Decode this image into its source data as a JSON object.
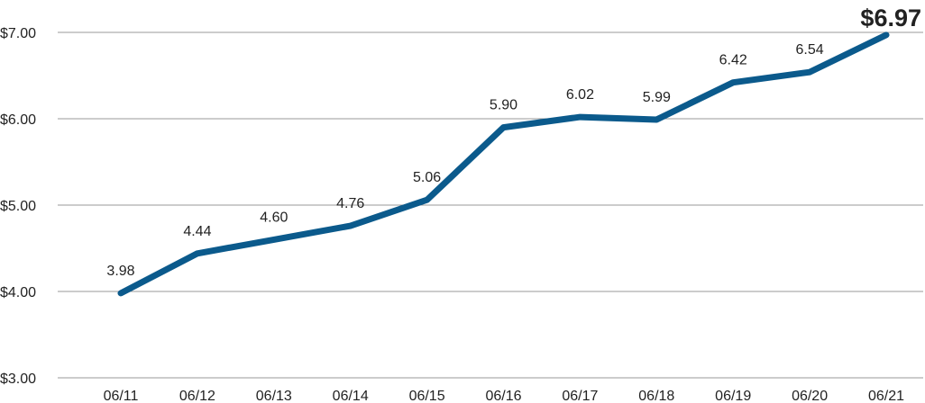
{
  "chart_data": {
    "type": "line",
    "title": "",
    "xlabel": "",
    "ylabel": "",
    "categories": [
      "06/11",
      "06/12",
      "06/13",
      "06/14",
      "06/15",
      "06/16",
      "06/17",
      "06/18",
      "06/19",
      "06/20",
      "06/21"
    ],
    "series": [
      {
        "values": [
          3.98,
          4.44,
          4.6,
          4.76,
          5.06,
          5.9,
          6.02,
          5.99,
          6.42,
          6.54,
          6.97
        ]
      }
    ],
    "data_labels": [
      "3.98",
      "4.44",
      "4.60",
      "4.76",
      "5.06",
      "5.90",
      "6.02",
      "5.99",
      "6.42",
      "6.54",
      "$6.97"
    ],
    "y_ticks": [
      3,
      4,
      5,
      6,
      7
    ],
    "y_tick_labels": [
      "$3.00",
      "$4.00",
      "$5.00",
      "$6.00",
      "$7.00"
    ],
    "ylim": [
      3,
      7
    ],
    "grid": true,
    "legend": "none",
    "colors": {
      "line": "#0b5a8c",
      "grid": "#9a9a9a",
      "text": "#222222"
    }
  }
}
